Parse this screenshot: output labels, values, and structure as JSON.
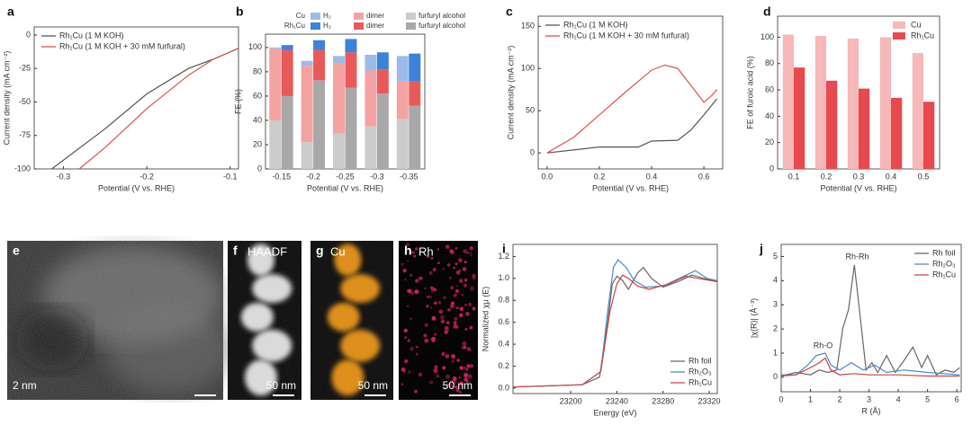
{
  "chart_data": [
    {
      "panel": "a",
      "type": "line",
      "xlabel": "Potential (V vs. RHE)",
      "ylabel": "Current density (mA cm⁻²)",
      "xlim": [
        -0.335,
        -0.09
      ],
      "ylim": [
        -100,
        6
      ],
      "xticks": [
        -0.3,
        -0.2,
        -0.1
      ],
      "yticks": [
        -100,
        -75,
        -50,
        -25,
        0
      ],
      "legend": "upper left",
      "series": [
        {
          "name": "Rh₁Cu (1 M KOH)",
          "color": "#555555",
          "x": [
            -0.314,
            -0.25,
            -0.2,
            -0.15,
            -0.12,
            -0.09
          ],
          "values": [
            -100,
            -70,
            -44,
            -25,
            -18,
            -10
          ]
        },
        {
          "name": "Rh₁Cu (1 M KOH + 30 mM furfural)",
          "color": "#e05050",
          "x": [
            -0.281,
            -0.25,
            -0.2,
            -0.15,
            -0.12,
            -0.09
          ],
          "values": [
            -100,
            -84,
            -55,
            -30,
            -18,
            -10
          ]
        }
      ]
    },
    {
      "panel": "b",
      "type": "stacked-bar",
      "xlabel": "Potential (V vs. RHE)",
      "ylabel": "FE (%)",
      "categories": [
        "-0.15",
        "-0.2",
        "-0.25",
        "-0.3",
        "-0.35"
      ],
      "ylim": [
        0,
        111
      ],
      "yticks": [
        0,
        20,
        40,
        60,
        80,
        100
      ],
      "groups": [
        {
          "name": "Cu",
          "series": [
            {
              "name": "H₂",
              "color": "#9dbbe8",
              "values": [
                1,
                4,
                6,
                13,
                21
              ]
            },
            {
              "name": "dimer",
              "color": "#f4a3a3",
              "values": [
                59,
                63,
                58,
                46,
                31
              ]
            },
            {
              "name": "furfuryl alcohol",
              "color": "#cccccc",
              "values": [
                40,
                22,
                29,
                35,
                41
              ]
            }
          ]
        },
        {
          "name": "Rh₁Cu",
          "series": [
            {
              "name": "H₂",
              "color": "#3b82d8",
              "values": [
                4,
                8,
                11,
                14,
                23
              ]
            },
            {
              "name": "dimer",
              "color": "#e85a5a",
              "values": [
                38,
                25,
                29,
                20,
                20
              ]
            },
            {
              "name": "furfuryl alcohol",
              "color": "#a8a8a8",
              "values": [
                60,
                73,
                67,
                62,
                52
              ]
            }
          ]
        }
      ]
    },
    {
      "panel": "c",
      "type": "line",
      "xlabel": "Potential (V vs. RHE)",
      "ylabel": "Current density (mA cm⁻²)",
      "xlim": [
        -0.034,
        0.672
      ],
      "ylim": [
        -19,
        162
      ],
      "xticks": [
        {
          "value": 0,
          "label": "0.0"
        },
        0.2,
        0.4,
        0.6
      ],
      "yticks": [
        0,
        50,
        100,
        150
      ],
      "legend": "upper left",
      "series": [
        {
          "name": "Rh₁Cu (1 M KOH)",
          "color": "#555555",
          "x": [
            0,
            0.2,
            0.35,
            0.4,
            0.5,
            0.55,
            0.6,
            0.65
          ],
          "values": [
            0,
            7,
            7,
            14,
            15,
            27,
            45,
            64
          ]
        },
        {
          "name": "Rh₁Cu (1 M KOH + 30 mM furfural)",
          "color": "#e05050",
          "x": [
            0,
            0.1,
            0.2,
            0.3,
            0.4,
            0.45,
            0.5,
            0.55,
            0.6,
            0.63,
            0.65
          ],
          "values": [
            0,
            18,
            45,
            72,
            98,
            104,
            100,
            80,
            60,
            68,
            75
          ]
        }
      ]
    },
    {
      "panel": "d",
      "type": "bar",
      "xlabel": "Potential (V vs. RHE)",
      "ylabel": "FE of furoic acid (%)",
      "categories": [
        "0.1",
        "0.2",
        "0.3",
        "0.4",
        "0.5"
      ],
      "ylim": [
        0,
        116
      ],
      "yticks": [
        0,
        20,
        40,
        60,
        80,
        100
      ],
      "legend": "upper right",
      "series": [
        {
          "name": "Cu",
          "color": "#f6b8b8",
          "values": [
            102,
            101,
            99,
            100,
            88
          ]
        },
        {
          "name": "Rh₁Cu",
          "color": "#e8494e",
          "values": [
            77,
            67,
            61,
            54,
            51
          ]
        }
      ]
    },
    {
      "panel": "i",
      "type": "line",
      "xlabel": "Energy (eV)",
      "ylabel": "Normalized χμ (E)",
      "xlim": [
        23150,
        23327
      ],
      "ylim": [
        -0.05,
        1.31
      ],
      "xticks": [
        23200,
        23240,
        23280,
        23320
      ],
      "yticks": [
        {
          "value": 0,
          "label": "0.0"
        },
        0.2,
        0.4,
        0.6,
        0.8,
        {
          "value": 1,
          "label": "1.0"
        },
        1.2
      ],
      "legend": "lower right",
      "series": [
        {
          "name": "Rh foil",
          "color": "#666666",
          "x": [
            23150,
            23210,
            23225,
            23232,
            23236,
            23240,
            23245,
            23250,
            23258,
            23263,
            23270,
            23280,
            23295,
            23305,
            23315,
            23327
          ],
          "values": [
            0.01,
            0.03,
            0.1,
            0.6,
            0.95,
            1.02,
            0.98,
            0.9,
            1.05,
            1.1,
            1.0,
            0.92,
            0.98,
            1.03,
            1.0,
            0.97
          ]
        },
        {
          "name": "Rh₂O₃",
          "color": "#4a8ac8",
          "x": [
            23150,
            23210,
            23226,
            23232,
            23237,
            23241,
            23248,
            23255,
            23265,
            23280,
            23300,
            23308,
            23318,
            23327
          ],
          "values": [
            0.01,
            0.03,
            0.15,
            0.7,
            1.1,
            1.17,
            1.1,
            0.98,
            0.92,
            0.93,
            1.03,
            1.07,
            1.0,
            0.98
          ]
        },
        {
          "name": "Rh₁Cu",
          "color": "#d04040",
          "x": [
            23150,
            23210,
            23226,
            23234,
            23240,
            23245,
            23250,
            23258,
            23268,
            23285,
            23300,
            23310,
            23327
          ],
          "values": [
            0.01,
            0.03,
            0.15,
            0.7,
            0.95,
            1.03,
            1.0,
            0.93,
            0.9,
            0.95,
            1.02,
            1.0,
            0.97
          ]
        }
      ]
    },
    {
      "panel": "j",
      "type": "line",
      "xlabel": "R (Å)",
      "ylabel": "|χ(R)| (Å⁻³)",
      "xlim": [
        0,
        6.15
      ],
      "ylim": [
        -0.6,
        5.5
      ],
      "xticks": [
        0,
        1,
        2,
        3,
        4,
        5,
        6
      ],
      "yticks": [
        0,
        1,
        2,
        3,
        4,
        5
      ],
      "legend": "upper right",
      "annotations": [
        "Rh-Rh",
        "Rh-O"
      ],
      "series": [
        {
          "name": "Rh foil",
          "color": "#666666",
          "x": [
            0,
            0.5,
            1,
            1.3,
            1.6,
            1.9,
            2.1,
            2.3,
            2.5,
            2.7,
            2.9,
            3.1,
            3.3,
            3.6,
            3.9,
            4.2,
            4.5,
            4.8,
            5.0,
            5.3,
            5.6,
            5.9,
            6.1
          ],
          "values": [
            0.05,
            0.2,
            0.1,
            0.3,
            0.2,
            0.3,
            2.0,
            2.8,
            4.65,
            2.5,
            0.3,
            0.6,
            0.2,
            0.9,
            0.2,
            0.7,
            1.25,
            0.4,
            0.9,
            0.1,
            0.3,
            0.2,
            0.4
          ]
        },
        {
          "name": "Rh₂O₃",
          "color": "#4a8ac8",
          "x": [
            0,
            0.5,
            0.9,
            1.2,
            1.5,
            1.7,
            2.0,
            2.4,
            2.8,
            3.2,
            3.6,
            4.2,
            5,
            6.1
          ],
          "values": [
            0.1,
            0.1,
            0.5,
            0.9,
            1.0,
            0.5,
            0.3,
            0.6,
            0.3,
            0.5,
            0.2,
            0.3,
            0.2,
            0.1
          ]
        },
        {
          "name": "Rh₁Cu",
          "color": "#d04040",
          "x": [
            0,
            0.5,
            1.0,
            1.3,
            1.5,
            1.7,
            2.0,
            2.5,
            3,
            4,
            5,
            6.1
          ],
          "values": [
            0.05,
            0.1,
            0.4,
            0.6,
            0.8,
            0.3,
            0.1,
            0.15,
            0.1,
            0.1,
            0.05,
            0.05
          ]
        }
      ]
    }
  ],
  "images": [
    {
      "panel": "e",
      "scale_bar": "2 nm"
    },
    {
      "panel": "f",
      "label": "HAADF",
      "scale_bar": "50 nm"
    },
    {
      "panel": "g",
      "label": "Cu",
      "scale_bar": "50 nm"
    },
    {
      "panel": "h",
      "label": "Rh",
      "scale_bar": "50 nm"
    }
  ]
}
